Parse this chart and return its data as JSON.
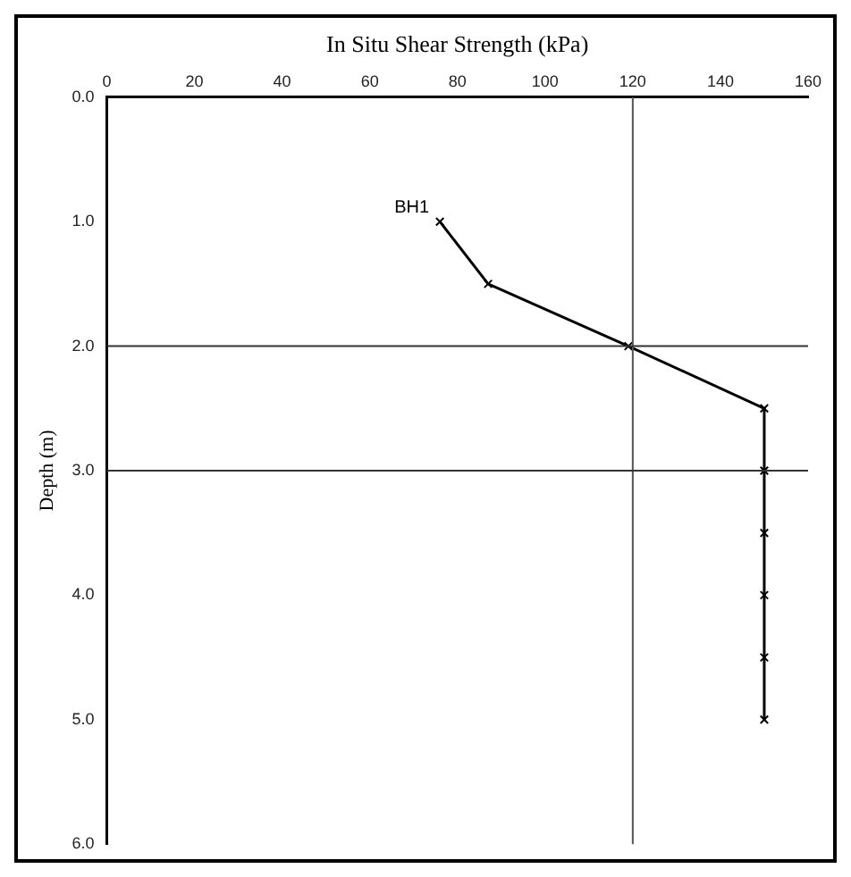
{
  "chart_data": {
    "type": "line",
    "xlabel": "In Situ Shear Strength (kPa)",
    "ylabel": "Depth (m)",
    "series": [
      {
        "name": "BH1",
        "color": "#000000",
        "x": [
          76,
          87,
          119,
          150,
          150,
          150,
          150,
          150,
          150
        ],
        "values": [
          1.0,
          1.5,
          2.0,
          2.5,
          3.0,
          3.5,
          4.0,
          4.5,
          5.0
        ]
      }
    ],
    "xlim": [
      0,
      160
    ],
    "xticks": [
      0,
      20,
      40,
      60,
      80,
      100,
      120,
      140,
      160
    ],
    "ylim": [
      6,
      0
    ],
    "yticks": [
      {
        "value": 0,
        "label": "0.0"
      },
      {
        "value": 1,
        "label": "1.0"
      },
      {
        "value": 2,
        "label": "2.0"
      },
      {
        "value": 3,
        "label": "3.0"
      },
      {
        "value": 4,
        "label": "4.0"
      },
      {
        "value": 5,
        "label": "5.0"
      },
      {
        "value": 6,
        "label": "6.0"
      }
    ],
    "ref_lines": [
      {
        "axis": "x",
        "value": 120,
        "color": "#555555"
      },
      {
        "axis": "y",
        "value": 2,
        "color": "#333333"
      },
      {
        "axis": "y",
        "value": 3,
        "color": "#333333"
      }
    ],
    "grid": false,
    "legend": false,
    "marker": "cross",
    "line_style": "solid"
  }
}
